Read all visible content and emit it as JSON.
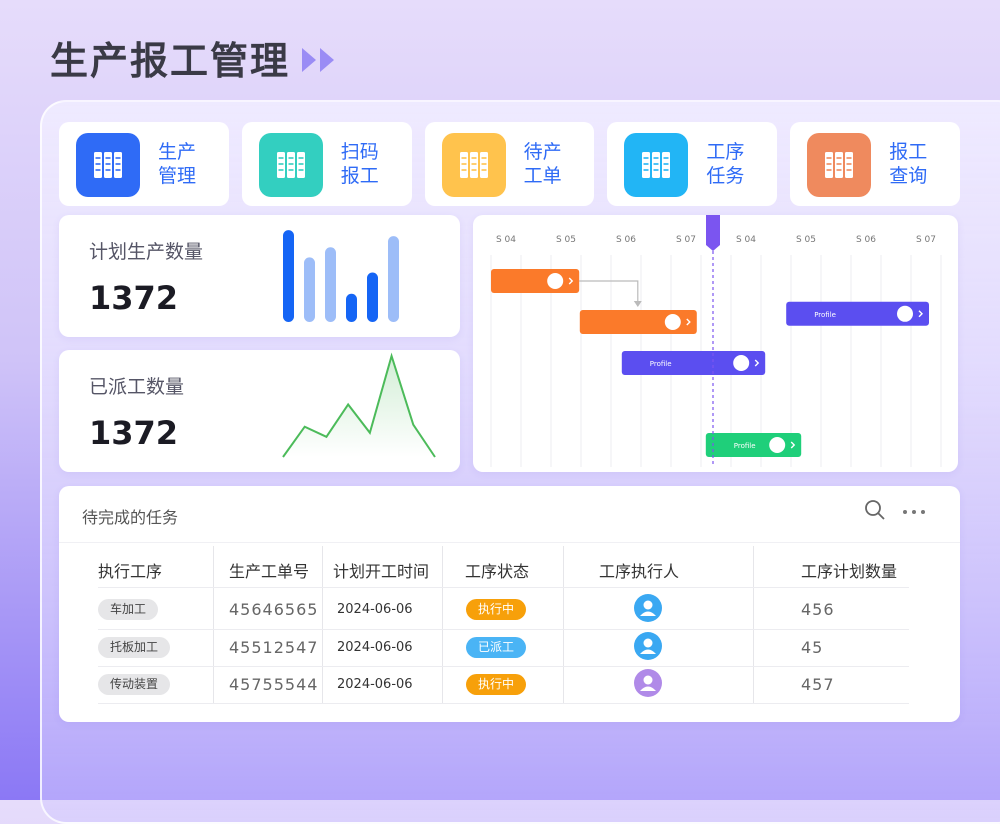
{
  "header": {
    "title": "生产报工管理"
  },
  "menu": [
    {
      "label": [
        "生产",
        "管理"
      ],
      "color": "#2f6bf6"
    },
    {
      "label": [
        "扫码",
        "报工"
      ],
      "color": "#33cfc0"
    },
    {
      "label": [
        "待产",
        "工单"
      ],
      "color": "#ffc34d"
    },
    {
      "label": [
        "工序",
        "任务"
      ],
      "color": "#22b5f5"
    },
    {
      "label": [
        "报工",
        "查询"
      ],
      "color": "#ef8a5e"
    }
  ],
  "stats": [
    {
      "label": "计划生产数量",
      "value": 1372,
      "chart": {
        "type": "bar",
        "ylim": [
          0,
          100
        ],
        "values": [
          91,
          64,
          74,
          28,
          49,
          85
        ],
        "colors": [
          "#1565f5",
          "#9dbdf8",
          "#9dbdf8",
          "#1565f5",
          "#1565f5",
          "#9dbdf8"
        ]
      }
    },
    {
      "label": "已派工数量",
      "value": 1372,
      "chart": {
        "type": "line",
        "ylim": [
          0,
          100
        ],
        "values": [
          0,
          30,
          20,
          52,
          24,
          100,
          32,
          0
        ],
        "color": "#4cbb5a"
      }
    }
  ],
  "gantt": {
    "columns": [
      "S 04",
      "S 05",
      "S 06",
      "S 07",
      "S 04",
      "S 05",
      "S 06",
      "S 07"
    ],
    "today": 3.95,
    "today_color": "#7b55f0",
    "tasks": [
      {
        "start": 0.25,
        "end": 1.72,
        "lane": 0,
        "color": "#fb7a2a"
      },
      {
        "start": 1.73,
        "end": 3.68,
        "lane": 1,
        "color": "#fb7a2a"
      },
      {
        "label": "Profile",
        "start": 2.43,
        "end": 4.82,
        "lane": 2,
        "color": "#5b4ef0"
      },
      {
        "label": "Profile",
        "start": 5.17,
        "end": 7.55,
        "lane": 0.8,
        "color": "#5b4ef0"
      },
      {
        "label": "Profile",
        "start": 3.83,
        "end": 5.42,
        "lane": 4,
        "color": "#1fcf7a"
      }
    ]
  },
  "tasks_table": {
    "title": "待完成的任务",
    "columns": [
      "执行工序",
      "生产工单号",
      "计划开工时间",
      "工序状态",
      "工序执行人",
      "工序计划数量"
    ],
    "rows": [
      {
        "process": "车加工",
        "order": "45646565",
        "date": "2024-06-06",
        "status": "执行中",
        "status_color": "#f7a00a",
        "assignee_color": "#3aa8f2",
        "quantity": 456
      },
      {
        "process": "托板加工",
        "order": "45512547",
        "date": "2024-06-06",
        "status": "已派工",
        "status_color": "#4ab4f5",
        "assignee_color": "#3aa8f2",
        "quantity": 45
      },
      {
        "process": "传动装置",
        "order": "45755544",
        "date": "2024-06-06",
        "status": "执行中",
        "status_color": "#f7a00a",
        "assignee_color": "#b08ae8",
        "quantity": 457
      }
    ]
  }
}
